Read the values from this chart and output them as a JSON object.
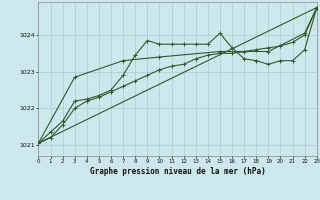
{
  "title": "Graphe pression niveau de la mer (hPa)",
  "bg_color": "#cce8ec",
  "grid_color": "#aacccc",
  "line_color": "#2d5a2d",
  "x_min": 0,
  "x_max": 23,
  "y_min": 1020.7,
  "y_max": 1024.9,
  "yticks": [
    1021,
    1022,
    1023,
    1024
  ],
  "xticks": [
    0,
    1,
    2,
    3,
    4,
    5,
    6,
    7,
    8,
    9,
    10,
    11,
    12,
    13,
    14,
    15,
    16,
    17,
    18,
    19,
    20,
    21,
    22,
    23
  ],
  "series1": [
    [
      0,
      1021.05
    ],
    [
      1,
      1021.35
    ],
    [
      2,
      1021.65
    ],
    [
      3,
      1022.2
    ],
    [
      4,
      1022.25
    ],
    [
      5,
      1022.35
    ],
    [
      6,
      1022.5
    ],
    [
      7,
      1022.9
    ],
    [
      8,
      1023.45
    ],
    [
      9,
      1023.85
    ],
    [
      10,
      1023.75
    ],
    [
      11,
      1023.75
    ],
    [
      12,
      1023.75
    ],
    [
      13,
      1023.75
    ],
    [
      14,
      1023.75
    ],
    [
      15,
      1024.05
    ],
    [
      16,
      1023.65
    ],
    [
      17,
      1023.35
    ],
    [
      18,
      1023.3
    ],
    [
      19,
      1023.2
    ],
    [
      20,
      1023.3
    ],
    [
      21,
      1023.3
    ],
    [
      22,
      1023.6
    ],
    [
      23,
      1024.75
    ]
  ],
  "series2": [
    [
      0,
      1021.05
    ],
    [
      1,
      1021.2
    ],
    [
      2,
      1021.55
    ],
    [
      3,
      1022.0
    ],
    [
      4,
      1022.2
    ],
    [
      5,
      1022.3
    ],
    [
      6,
      1022.45
    ],
    [
      7,
      1022.6
    ],
    [
      8,
      1022.75
    ],
    [
      9,
      1022.9
    ],
    [
      10,
      1023.05
    ],
    [
      11,
      1023.15
    ],
    [
      12,
      1023.2
    ],
    [
      13,
      1023.35
    ],
    [
      14,
      1023.45
    ],
    [
      15,
      1023.5
    ],
    [
      16,
      1023.5
    ],
    [
      17,
      1023.55
    ],
    [
      18,
      1023.6
    ],
    [
      19,
      1023.65
    ],
    [
      20,
      1023.7
    ],
    [
      21,
      1023.8
    ],
    [
      22,
      1024.0
    ],
    [
      23,
      1024.75
    ]
  ],
  "series3": [
    [
      0,
      1021.05
    ],
    [
      3,
      1022.85
    ],
    [
      7,
      1023.3
    ],
    [
      10,
      1023.4
    ],
    [
      15,
      1023.55
    ],
    [
      19,
      1023.55
    ],
    [
      22,
      1024.05
    ],
    [
      23,
      1024.75
    ]
  ],
  "series4": [
    [
      0,
      1021.05
    ],
    [
      23,
      1024.75
    ]
  ]
}
